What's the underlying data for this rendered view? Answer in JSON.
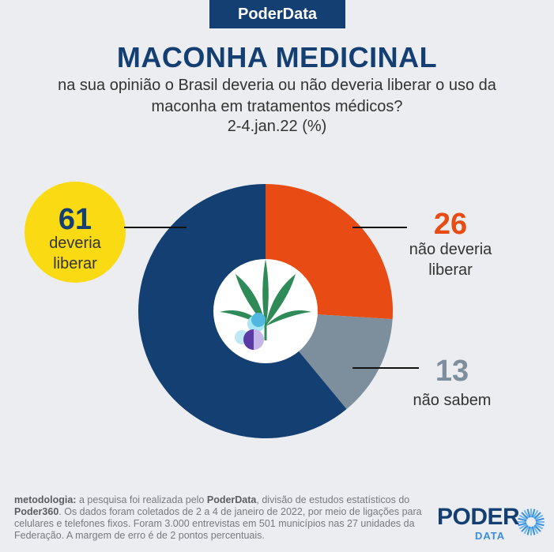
{
  "header": {
    "brand": "PoderData",
    "title": "MACONHA MEDICINAL",
    "subtitle": "na sua opinião o Brasil deveria ou não deveria liberar o uso da maconha em tratamentos médicos?",
    "date": "2-4.jan.22 (%)"
  },
  "chart_data": {
    "type": "pie",
    "style": "donut",
    "categories": [
      "deveria liberar",
      "não deveria liberar",
      "não sabem"
    ],
    "values": [
      61,
      26,
      13
    ],
    "colors": [
      "#143f73",
      "#e84c14",
      "#7d8f9c"
    ],
    "highlight_color": "#f9da13",
    "label_colors": [
      "#143f73",
      "#e84c14",
      "#7d8f9c"
    ],
    "center_icon": "cannabis-leaf-and-pills-icon"
  },
  "footer": {
    "method_label": "metodologia:",
    "method_text_1": " a pesquisa foi realizada pelo ",
    "method_org": "PoderData",
    "method_text_2": ", divisão de estudos estatísticos do ",
    "method_parent": "Poder360",
    "method_text_3": ". Os dados foram coletados de 2 a 4 de janeiro de 2022, por meio de ligações para celulares e telefones fixos. Foram 3.000 entrevistas em 501 municípios nas 27 unidades da Federação. A margem de erro é de 2 pontos percentuais."
  },
  "logo": {
    "word": "PODER",
    "sub": "DATA",
    "icon": "sunburst-icon"
  }
}
